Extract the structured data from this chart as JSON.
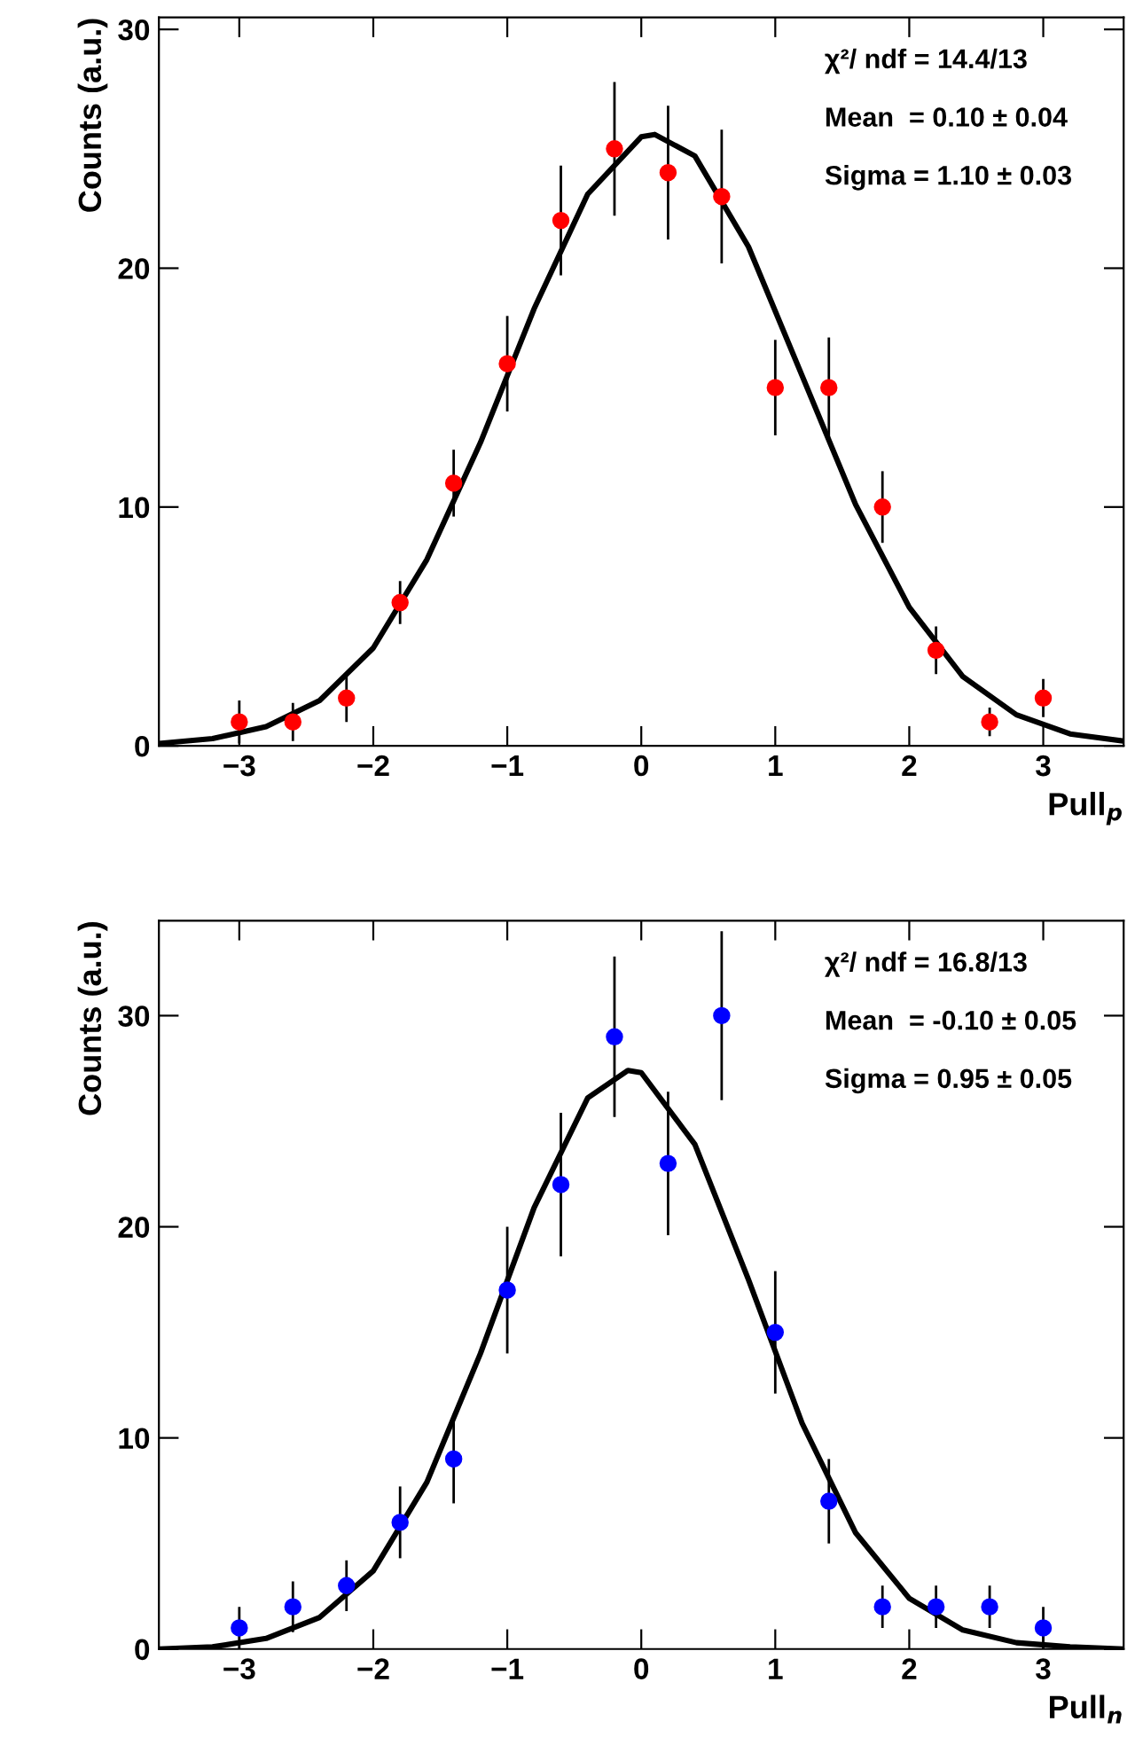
{
  "chart_data": [
    {
      "type": "scatter",
      "xlabel": "Pull$_{p}$",
      "ylabel": "Counts (a.u.)",
      "xlim": [
        -3.6,
        3.6
      ],
      "ylim": [
        0,
        30.5
      ],
      "xticks": [
        {
          "value": -3,
          "label": "−3"
        },
        {
          "value": -2,
          "label": "−2"
        },
        {
          "value": -1,
          "label": "−1"
        },
        0,
        1,
        2,
        3
      ],
      "yticks": [
        0,
        10,
        20,
        30
      ],
      "grid": false,
      "legend": false,
      "annotations": [
        "χ²/ ndf = 14.4/13",
        "Mean  = 0.10 ± 0.04",
        "Sigma = 1.10 ± 0.03"
      ],
      "series": [
        {
          "marker": "circle",
          "color": "#ff0000",
          "x": [
            -3,
            -2.6,
            -2.2,
            -1.8,
            -1.4,
            -1,
            -0.6,
            -0.2,
            0.2,
            0.6,
            1,
            1.4,
            1.8,
            2.2,
            2.6,
            3
          ],
          "values": [
            1,
            1,
            2,
            6,
            11,
            16,
            22,
            25,
            24,
            23,
            15,
            15,
            10,
            4,
            1,
            2
          ],
          "errors": [
            0.9,
            0.8,
            1.0,
            0.9,
            1.4,
            2.0,
            2.3,
            2.8,
            2.8,
            2.8,
            2.0,
            2.1,
            1.5,
            1.0,
            0.6,
            0.8
          ]
        },
        {
          "type": "line",
          "color": "#000000",
          "x": [
            -3.6,
            -3.2,
            -2.8,
            -2.4,
            -2.0,
            -1.6,
            -1.2,
            -0.8,
            -0.4,
            0.0,
            0.1,
            0.4,
            0.8,
            1.2,
            1.6,
            2.0,
            2.4,
            2.8,
            3.2,
            3.6
          ],
          "values": [
            0.1,
            0.3,
            0.8,
            1.9,
            4.1,
            7.8,
            12.7,
            18.3,
            23.1,
            25.5,
            25.6,
            24.7,
            20.9,
            15.5,
            10.1,
            5.8,
            2.9,
            1.3,
            0.5,
            0.2
          ]
        }
      ]
    },
    {
      "type": "scatter",
      "xlabel": "Pull$_{n}$",
      "ylabel": "Counts (a.u.)",
      "xlim": [
        -3.6,
        3.6
      ],
      "ylim": [
        0,
        34.5
      ],
      "xticks": [
        {
          "value": -3,
          "label": "−3"
        },
        {
          "value": -2,
          "label": "−2"
        },
        {
          "value": -1,
          "label": "−1"
        },
        0,
        1,
        2,
        3
      ],
      "yticks": [
        0,
        10,
        20,
        30
      ],
      "grid": false,
      "legend": false,
      "annotations": [
        "χ²/ ndf = 16.8/13",
        "Mean  = -0.10 ± 0.05",
        "Sigma = 0.95 ± 0.05"
      ],
      "series": [
        {
          "marker": "circle",
          "color": "#0000ff",
          "x": [
            -3,
            -2.6,
            -2.2,
            -1.8,
            -1.4,
            -1,
            -0.6,
            -0.2,
            0.2,
            0.6,
            1,
            1.4,
            1.8,
            2.2,
            2.6,
            3
          ],
          "values": [
            1,
            2,
            3,
            6,
            9,
            17,
            22,
            29,
            23,
            30,
            15,
            7,
            2,
            2,
            2,
            1
          ],
          "errors": [
            1.0,
            1.2,
            1.2,
            1.7,
            2.1,
            3.0,
            3.4,
            3.8,
            3.4,
            4.0,
            2.9,
            2.0,
            1.0,
            1.0,
            1.0,
            1.0
          ]
        },
        {
          "type": "line",
          "color": "#000000",
          "x": [
            -3.6,
            -3.2,
            -2.8,
            -2.4,
            -2.0,
            -1.6,
            -1.2,
            -0.8,
            -0.4,
            -0.1,
            0.0,
            0.4,
            0.8,
            1.2,
            1.6,
            2.0,
            2.4,
            2.8,
            3.2,
            3.6
          ],
          "values": [
            0.0,
            0.1,
            0.5,
            1.5,
            3.7,
            7.9,
            14.0,
            20.9,
            26.1,
            27.4,
            27.3,
            23.9,
            17.5,
            10.7,
            5.5,
            2.4,
            0.9,
            0.3,
            0.1,
            0.0
          ]
        }
      ]
    }
  ]
}
